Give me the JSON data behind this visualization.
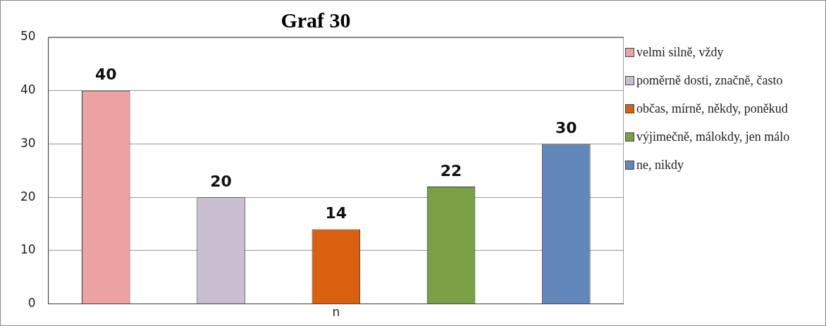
{
  "chart_data": {
    "type": "bar",
    "title": "Graf 30",
    "categories": [
      "n"
    ],
    "series": [
      {
        "name": "velmi silně, vždy",
        "color": "#eda3a3",
        "values": [
          40
        ]
      },
      {
        "name": "poměrně dosti, značně, často",
        "color": "#c9bfd1",
        "values": [
          20
        ]
      },
      {
        "name": "občas, mírně, někdy, poněkud",
        "color": "#d9600f",
        "values": [
          14
        ]
      },
      {
        "name": "výjimečně, málokdy, jen málo",
        "color": "#7ba045",
        "values": [
          22
        ]
      },
      {
        "name": "ne, nikdy",
        "color": "#6288bb",
        "values": [
          30
        ]
      }
    ],
    "ylim": [
      0,
      50
    ],
    "yticks": [
      0,
      10,
      20,
      30,
      40,
      50
    ],
    "grid": "y",
    "legend": "right",
    "data_labels": true
  }
}
